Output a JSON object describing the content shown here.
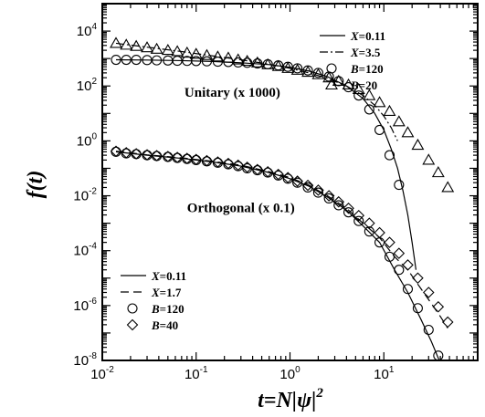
{
  "chart_data": {
    "type": "scatter",
    "title": "",
    "xlabel": "t=N|ψ|",
    "xlabel_exponent": "2",
    "ylabel": "f(t)",
    "x_scale": "log",
    "y_scale": "log",
    "xlim": [
      0.01,
      100
    ],
    "ylim": [
      1e-08,
      100000
    ],
    "grid": false,
    "x_ticks": [
      {
        "value": 0.01,
        "base": "10",
        "exp": "-2"
      },
      {
        "value": 0.1,
        "base": "10",
        "exp": "-1"
      },
      {
        "value": 1,
        "base": "10",
        "exp": "0"
      },
      {
        "value": 10,
        "base": "10",
        "exp": "1"
      }
    ],
    "y_ticks": [
      {
        "value": 1e-08,
        "base": "10",
        "exp": "-8"
      },
      {
        "value": 1e-06,
        "base": "10",
        "exp": "-6"
      },
      {
        "value": 0.0001,
        "base": "10",
        "exp": "-4"
      },
      {
        "value": 0.01,
        "base": "10",
        "exp": "-2"
      },
      {
        "value": 1,
        "base": "10",
        "exp": "0"
      },
      {
        "value": 100,
        "base": "10",
        "exp": "2"
      },
      {
        "value": 10000,
        "base": "10",
        "exp": "4"
      }
    ],
    "annotations": [
      {
        "text": "Unitary (x 1000)",
        "x": 0.075,
        "y": 40
      },
      {
        "text": "Orthogonal (x 0.1)",
        "x": 0.08,
        "y": 0.0025
      }
    ],
    "legends": [
      {
        "placement": "top-right",
        "entries": [
          {
            "marker": "solid-line",
            "label": "X",
            "value": "=0.11"
          },
          {
            "marker": "dash-dot-line",
            "label": "X",
            "value": "=3.5"
          },
          {
            "marker": "circle",
            "label": "B",
            "value": "=120"
          },
          {
            "marker": "triangle",
            "label": "B",
            "value": "=20"
          }
        ]
      },
      {
        "placement": "bottom-left",
        "entries": [
          {
            "marker": "solid-line",
            "label": "X",
            "value": "=0.11"
          },
          {
            "marker": "dashed-line",
            "label": "X",
            "value": "=1.7"
          },
          {
            "marker": "circle",
            "label": "B",
            "value": "=120"
          },
          {
            "marker": "diamond",
            "label": "B",
            "value": "=40"
          }
        ]
      }
    ],
    "series": [
      {
        "group": "Unitary",
        "legend_index": 2,
        "kind": "points",
        "marker": "circle",
        "x": [
          0.014,
          0.018,
          0.023,
          0.03,
          0.038,
          0.05,
          0.063,
          0.08,
          0.1,
          0.13,
          0.17,
          0.22,
          0.28,
          0.35,
          0.45,
          0.58,
          0.75,
          0.95,
          1.2,
          1.55,
          2.0,
          2.6,
          3.3,
          4.2,
          5.4,
          7.0,
          9.0,
          11.5,
          14.5
        ],
        "y": [
          900,
          900,
          900,
          880,
          860,
          850,
          830,
          820,
          810,
          790,
          770,
          750,
          720,
          700,
          660,
          620,
          560,
          500,
          440,
          370,
          300,
          220,
          150,
          90,
          45,
          14,
          2.5,
          0.3,
          0.025
        ]
      },
      {
        "group": "Unitary",
        "legend_index": 3,
        "kind": "points",
        "marker": "triangle",
        "x": [
          0.014,
          0.018,
          0.023,
          0.03,
          0.038,
          0.05,
          0.063,
          0.08,
          0.1,
          0.13,
          0.17,
          0.22,
          0.28,
          0.35,
          0.45,
          0.58,
          0.75,
          0.95,
          1.2,
          1.55,
          2.0,
          2.6,
          3.3,
          4.2,
          5.4,
          7.0,
          9.0,
          11.5,
          14.5,
          18,
          23,
          30,
          38,
          48
        ],
        "y": [
          3600,
          3100,
          2800,
          2500,
          2200,
          2000,
          1800,
          1600,
          1450,
          1300,
          1150,
          1050,
          900,
          800,
          700,
          600,
          520,
          440,
          380,
          320,
          260,
          200,
          150,
          110,
          75,
          45,
          25,
          12,
          5,
          2,
          0.7,
          0.2,
          0.07,
          0.02
        ]
      },
      {
        "group": "Orthogonal",
        "legend_index": 2,
        "kind": "points",
        "marker": "circle",
        "x": [
          0.014,
          0.018,
          0.023,
          0.03,
          0.038,
          0.05,
          0.063,
          0.08,
          0.1,
          0.13,
          0.17,
          0.22,
          0.28,
          0.35,
          0.45,
          0.58,
          0.75,
          0.95,
          1.2,
          1.55,
          2.0,
          2.6,
          3.3,
          4.2,
          5.4,
          7.0,
          9.0,
          11.5,
          14.5,
          18,
          23,
          30,
          38
        ],
        "y": [
          0.4,
          0.35,
          0.33,
          0.3,
          0.28,
          0.26,
          0.24,
          0.22,
          0.2,
          0.18,
          0.16,
          0.14,
          0.12,
          0.1,
          0.085,
          0.07,
          0.055,
          0.042,
          0.03,
          0.02,
          0.013,
          0.008,
          0.0045,
          0.0025,
          0.0012,
          0.0005,
          0.0002,
          6e-05,
          2e-05,
          4e-06,
          8e-07,
          1.3e-07,
          1.5e-08
        ]
      },
      {
        "group": "Orthogonal",
        "legend_index": 3,
        "kind": "points",
        "marker": "diamond",
        "x": [
          0.014,
          0.018,
          0.023,
          0.03,
          0.038,
          0.05,
          0.063,
          0.08,
          0.1,
          0.13,
          0.17,
          0.22,
          0.28,
          0.35,
          0.45,
          0.58,
          0.75,
          0.95,
          1.2,
          1.55,
          2.0,
          2.6,
          3.3,
          4.2,
          5.4,
          7.0,
          9.0,
          11.5,
          14.5,
          18,
          23,
          30,
          38,
          48
        ],
        "y": [
          0.42,
          0.37,
          0.34,
          0.31,
          0.29,
          0.27,
          0.25,
          0.23,
          0.21,
          0.19,
          0.17,
          0.15,
          0.13,
          0.11,
          0.09,
          0.075,
          0.06,
          0.046,
          0.034,
          0.024,
          0.016,
          0.01,
          0.006,
          0.0035,
          0.0019,
          0.001,
          0.00045,
          0.0002,
          8e-05,
          3e-05,
          1e-05,
          3e-06,
          9e-07,
          2.5e-07
        ]
      },
      {
        "group": "Unitary",
        "legend_index": 0,
        "kind": "line",
        "dash": "solid",
        "x": [
          0.014,
          0.03,
          0.07,
          0.15,
          0.3,
          0.6,
          1.0,
          1.6,
          2.5,
          4.0,
          6.0,
          8.0,
          10,
          12,
          14,
          16,
          18,
          20,
          22
        ],
        "y": [
          900,
          880,
          840,
          780,
          700,
          600,
          480,
          350,
          220,
          100,
          35,
          10,
          2.5,
          0.5,
          0.1,
          0.015,
          0.002,
          0.0002,
          2e-05
        ]
      },
      {
        "group": "Unitary",
        "legend_index": 1,
        "kind": "line",
        "dash": "dash-dot",
        "x": [
          0.014,
          0.03,
          0.07,
          0.15,
          0.3,
          0.6,
          1.0,
          1.6,
          2.5,
          4.0,
          6.0,
          8.0,
          10,
          12,
          14
        ],
        "y": [
          3600,
          2600,
          1800,
          1250,
          900,
          620,
          440,
          300,
          190,
          100,
          45,
          20,
          8,
          3,
          1
        ]
      },
      {
        "group": "Orthogonal",
        "legend_index": 0,
        "kind": "line",
        "dash": "solid",
        "x": [
          0.014,
          0.03,
          0.07,
          0.15,
          0.3,
          0.6,
          1.0,
          1.6,
          2.5,
          4.0,
          6.0,
          9.0,
          13,
          18,
          25,
          32,
          40
        ],
        "y": [
          0.4,
          0.3,
          0.23,
          0.17,
          0.12,
          0.07,
          0.042,
          0.022,
          0.009,
          0.003,
          0.0008,
          0.0002,
          2e-05,
          3e-06,
          3e-07,
          5e-08,
          8e-09
        ]
      },
      {
        "group": "Orthogonal",
        "legend_index": 1,
        "kind": "line",
        "dash": "dashed",
        "x": [
          0.014,
          0.03,
          0.07,
          0.15,
          0.3,
          0.6,
          1.0,
          1.6,
          2.5,
          4.0,
          6.0,
          9.0,
          13,
          18,
          25,
          32,
          40,
          48
        ],
        "y": [
          0.42,
          0.31,
          0.24,
          0.18,
          0.13,
          0.075,
          0.046,
          0.024,
          0.01,
          0.0035,
          0.001,
          0.0003,
          6e-05,
          2e-05,
          4e-06,
          1.2e-06,
          4e-07,
          1.5e-07
        ]
      }
    ]
  }
}
